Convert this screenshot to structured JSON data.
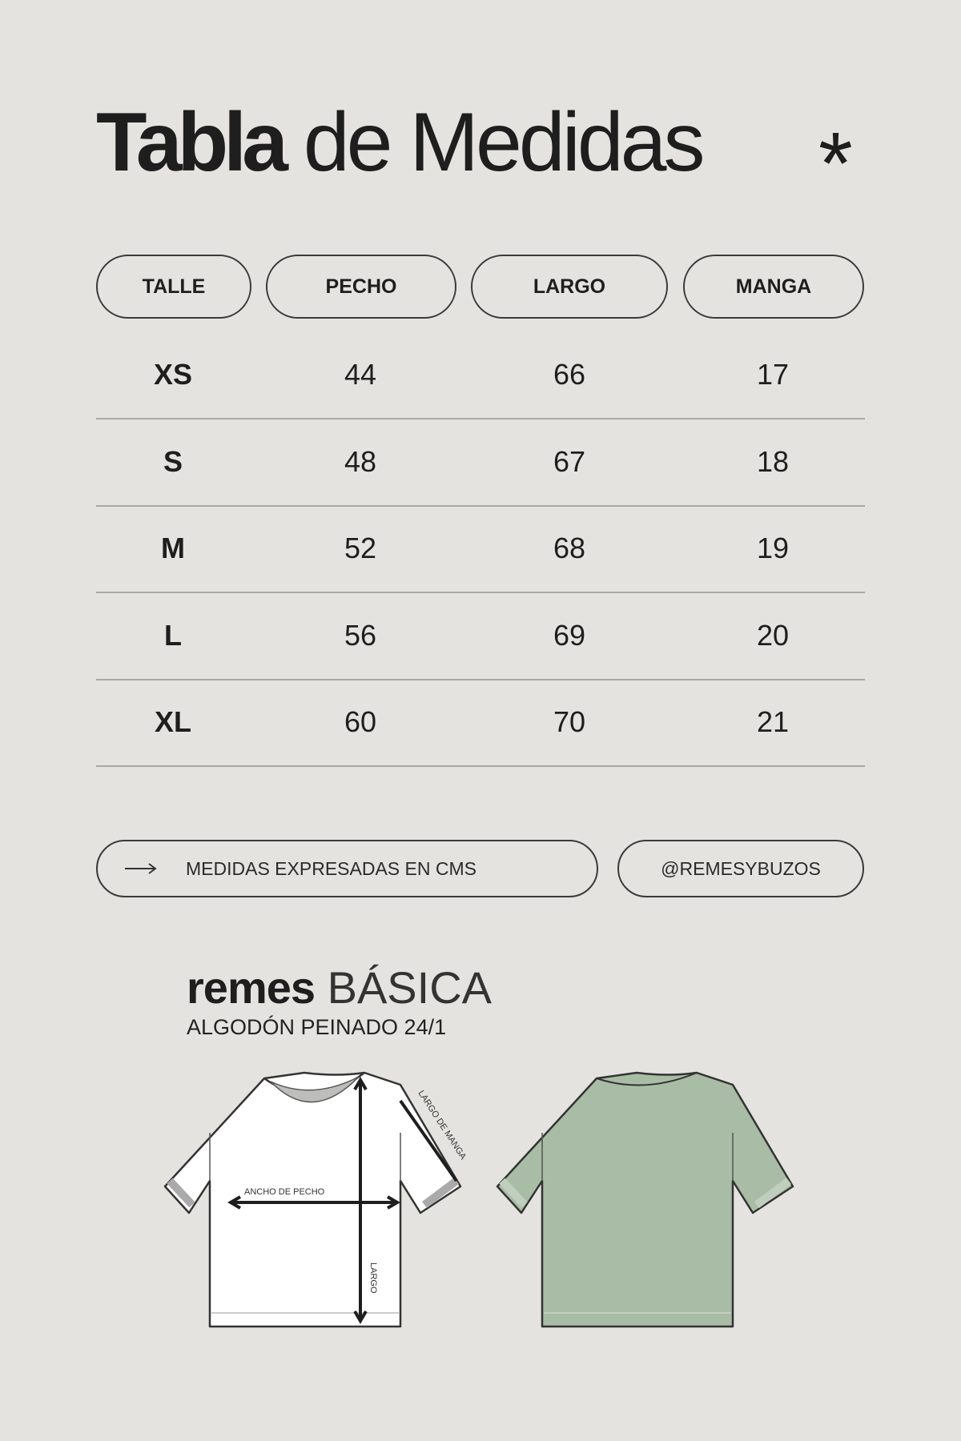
{
  "title": {
    "bold": "Tabla",
    "light": "de Medidas",
    "asterisk": "*"
  },
  "headers": [
    "TALLE",
    "PECHO",
    "LARGO",
    "MANGA"
  ],
  "rows": [
    {
      "talle": "XS",
      "pecho": "44",
      "largo": "66",
      "manga": "17"
    },
    {
      "talle": "S",
      "pecho": "48",
      "largo": "67",
      "manga": "18"
    },
    {
      "talle": "M",
      "pecho": "52",
      "largo": "68",
      "manga": "19"
    },
    {
      "talle": "L",
      "pecho": "56",
      "largo": "69",
      "manga": "20"
    },
    {
      "talle": "XL",
      "pecho": "60",
      "largo": "70",
      "manga": "21"
    }
  ],
  "footer": {
    "note": "MEDIDAS EXPRESADAS EN CMS",
    "note_icon": "arrow-right-icon",
    "handle": "@REMESYBUZOS"
  },
  "product": {
    "brand": "remes",
    "model": "BÁSICA",
    "fabric": "ALGODÓN PEINADO 24/1"
  },
  "diagram": {
    "chest_label": "ANCHO DE PECHO",
    "sleeve_label": "LARGO DE MANGA",
    "length_label": "LARGO"
  },
  "colors": {
    "background": "#e4e3df",
    "shirt_back": "#a9bda6",
    "shirt_front": "#ffffff"
  }
}
